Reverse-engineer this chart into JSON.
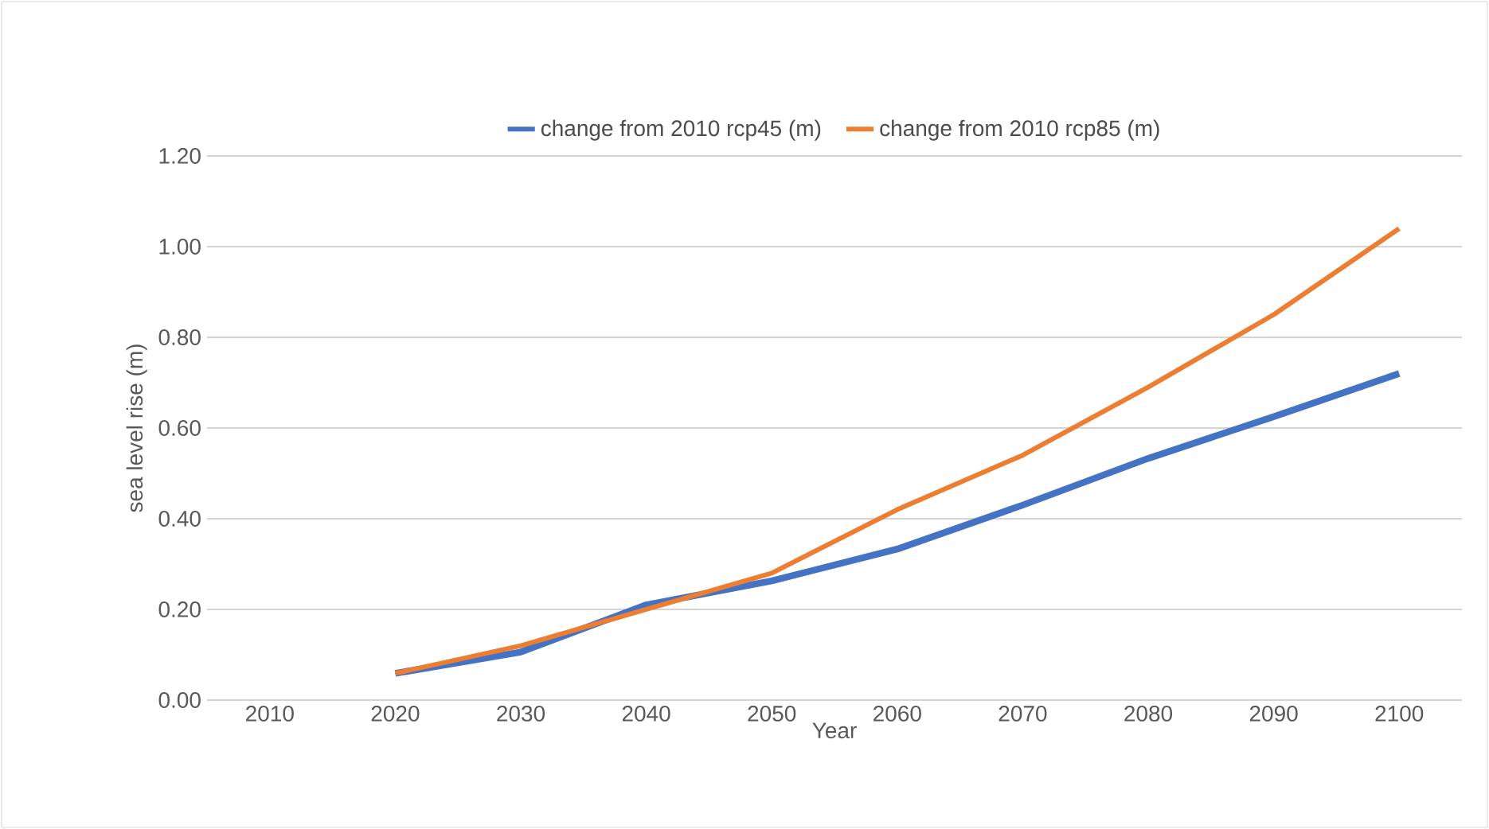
{
  "chart_data": {
    "type": "line",
    "xlabel": "Year",
    "ylabel": "sea level rise (m)",
    "categories": [
      "2010",
      "2020",
      "2030",
      "2040",
      "2050",
      "2060",
      "2070",
      "2080",
      "2090",
      "2100"
    ],
    "series": [
      {
        "name": "change from 2010 rcp45 (m)",
        "color": "#4472c4",
        "values": [
          null,
          0.059,
          0.106,
          0.21,
          0.263,
          0.333,
          0.43,
          0.533,
          0.625,
          0.72
        ]
      },
      {
        "name": "change from 2010 rcp85 (m)",
        "color": "#ed7d31",
        "values": [
          null,
          0.059,
          0.12,
          0.2,
          0.28,
          0.42,
          0.54,
          0.69,
          0.85,
          1.04
        ]
      }
    ],
    "ylim": [
      0,
      1.2
    ],
    "yticks": [
      {
        "value": 0,
        "label": "0.00"
      },
      {
        "value": 0.2,
        "label": "0.20"
      },
      {
        "value": 0.4,
        "label": "0.40"
      },
      {
        "value": 0.6,
        "label": "0.60"
      },
      {
        "value": 0.8,
        "label": "0.80"
      },
      {
        "value": 1.0,
        "label": "1.00"
      },
      {
        "value": 1.2,
        "label": "1.20"
      }
    ],
    "grid": "y",
    "legend": "top",
    "marker": "none",
    "line_style": "solid"
  }
}
